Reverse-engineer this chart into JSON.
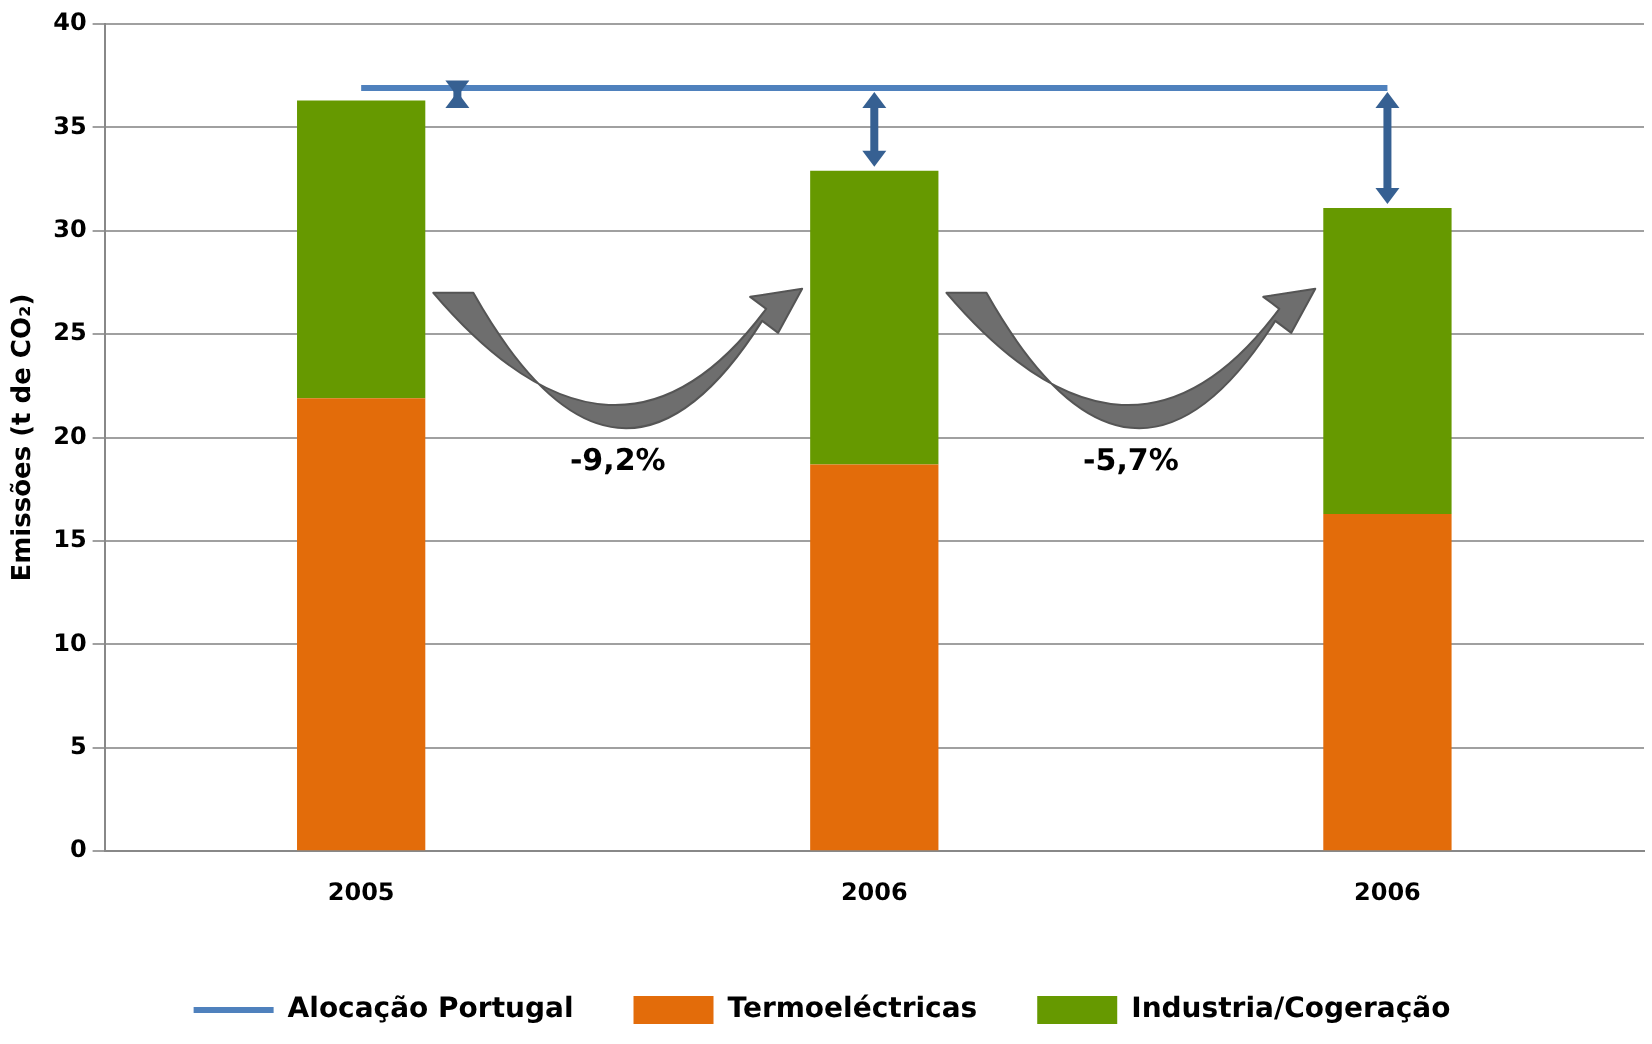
{
  "chart_data": {
    "type": "bar",
    "ylabel": "Emissões (t de CO₂)",
    "categories": [
      "2005",
      "2006",
      "2006"
    ],
    "stacked": true,
    "series": [
      {
        "name": "Termoeléctricas",
        "color": "#e36c0a",
        "values": [
          21.9,
          18.7,
          16.3
        ]
      },
      {
        "name": "Industria/Cogeração",
        "color": "#669900",
        "values": [
          14.4,
          14.2,
          14.8
        ]
      },
      {
        "name": "Alocação Portugal",
        "type": "line",
        "color": "#4f81bd",
        "values": [
          36.9,
          36.9,
          36.9
        ]
      }
    ],
    "annotations": [
      "-9,2%",
      "-5,7%"
    ],
    "ylim": [
      0,
      40
    ],
    "yticks": [
      0,
      5,
      10,
      15,
      20,
      25,
      30,
      35,
      40
    ],
    "grid": "y",
    "legend": "bottom",
    "marker": "none",
    "line_style": "solid"
  }
}
